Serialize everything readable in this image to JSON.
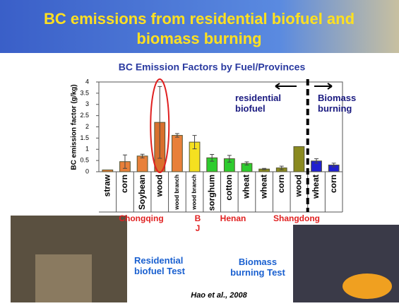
{
  "slide_title": "BC emissions from residential biofuel and biomass burning",
  "chart_data": {
    "type": "bar",
    "title": "BC Emission Factors by Fuel/Provinces",
    "y_label": "BC emission factor (g/kg)",
    "categories": [
      "straw",
      "corn",
      "Soybean",
      "wood",
      "wood branch",
      "wood branch",
      "sorghum",
      "cotton",
      "wheat",
      "wheat",
      "corn",
      "wood",
      "wheat",
      "corn"
    ],
    "values": [
      0.08,
      0.45,
      0.7,
      2.2,
      1.62,
      1.32,
      0.62,
      0.58,
      0.37,
      0.12,
      0.17,
      1.12,
      0.48,
      0.3
    ],
    "errors": [
      0,
      0.3,
      0.08,
      1.6,
      0.08,
      0.3,
      0.15,
      0.15,
      0.07,
      0.03,
      0.08,
      0,
      0.1,
      0.08
    ],
    "colors": [
      "#e8803a",
      "#e8803a",
      "#e8803a",
      "#d9702e",
      "#e8803a",
      "#f5e020",
      "#2ecc2e",
      "#2ecc2e",
      "#2ecc2e",
      "#8a8a20",
      "#8a8a20",
      "#8a8a20",
      "#2020d0",
      "#2020d0"
    ],
    "ylim": [
      0,
      4
    ],
    "yticks": [
      0,
      0.5,
      1,
      1.5,
      2,
      2.5,
      3,
      3.5,
      4
    ],
    "groups": [
      "Chongqing",
      "B J",
      "Henan",
      "Shangdong"
    ],
    "annotations": [
      "residential biofuel",
      "Biomass burning"
    ]
  },
  "photo_captions": [
    "Residential biofuel Test",
    "Biomass burning Test"
  ],
  "citation": "Hao et al., 2008"
}
